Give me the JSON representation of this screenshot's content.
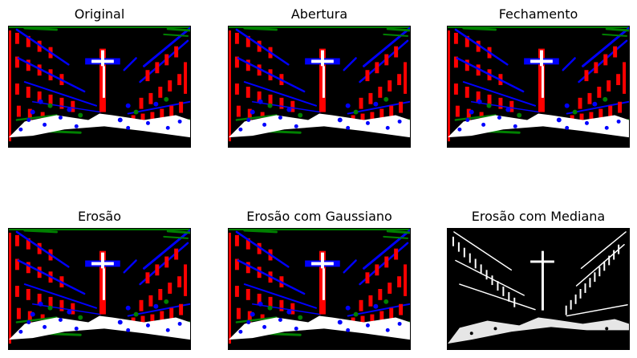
{
  "figure": {
    "panels": [
      {
        "title": "Original",
        "image": "segmented-street-scene-color"
      },
      {
        "title": "Abertura",
        "image": "segmented-street-scene-color"
      },
      {
        "title": "Fechamento",
        "image": "segmented-street-scene-color"
      },
      {
        "title": "Erosão",
        "image": "segmented-street-scene-color"
      },
      {
        "title": "Erosão com Gaussiano",
        "image": "segmented-street-scene-color"
      },
      {
        "title": "Erosão com Mediana",
        "image": "street-scene-edges-white"
      }
    ],
    "colors": {
      "background": "#000000",
      "red": "#ff0000",
      "green": "#008000",
      "blue": "#0000ff",
      "white": "#ffffff"
    }
  }
}
